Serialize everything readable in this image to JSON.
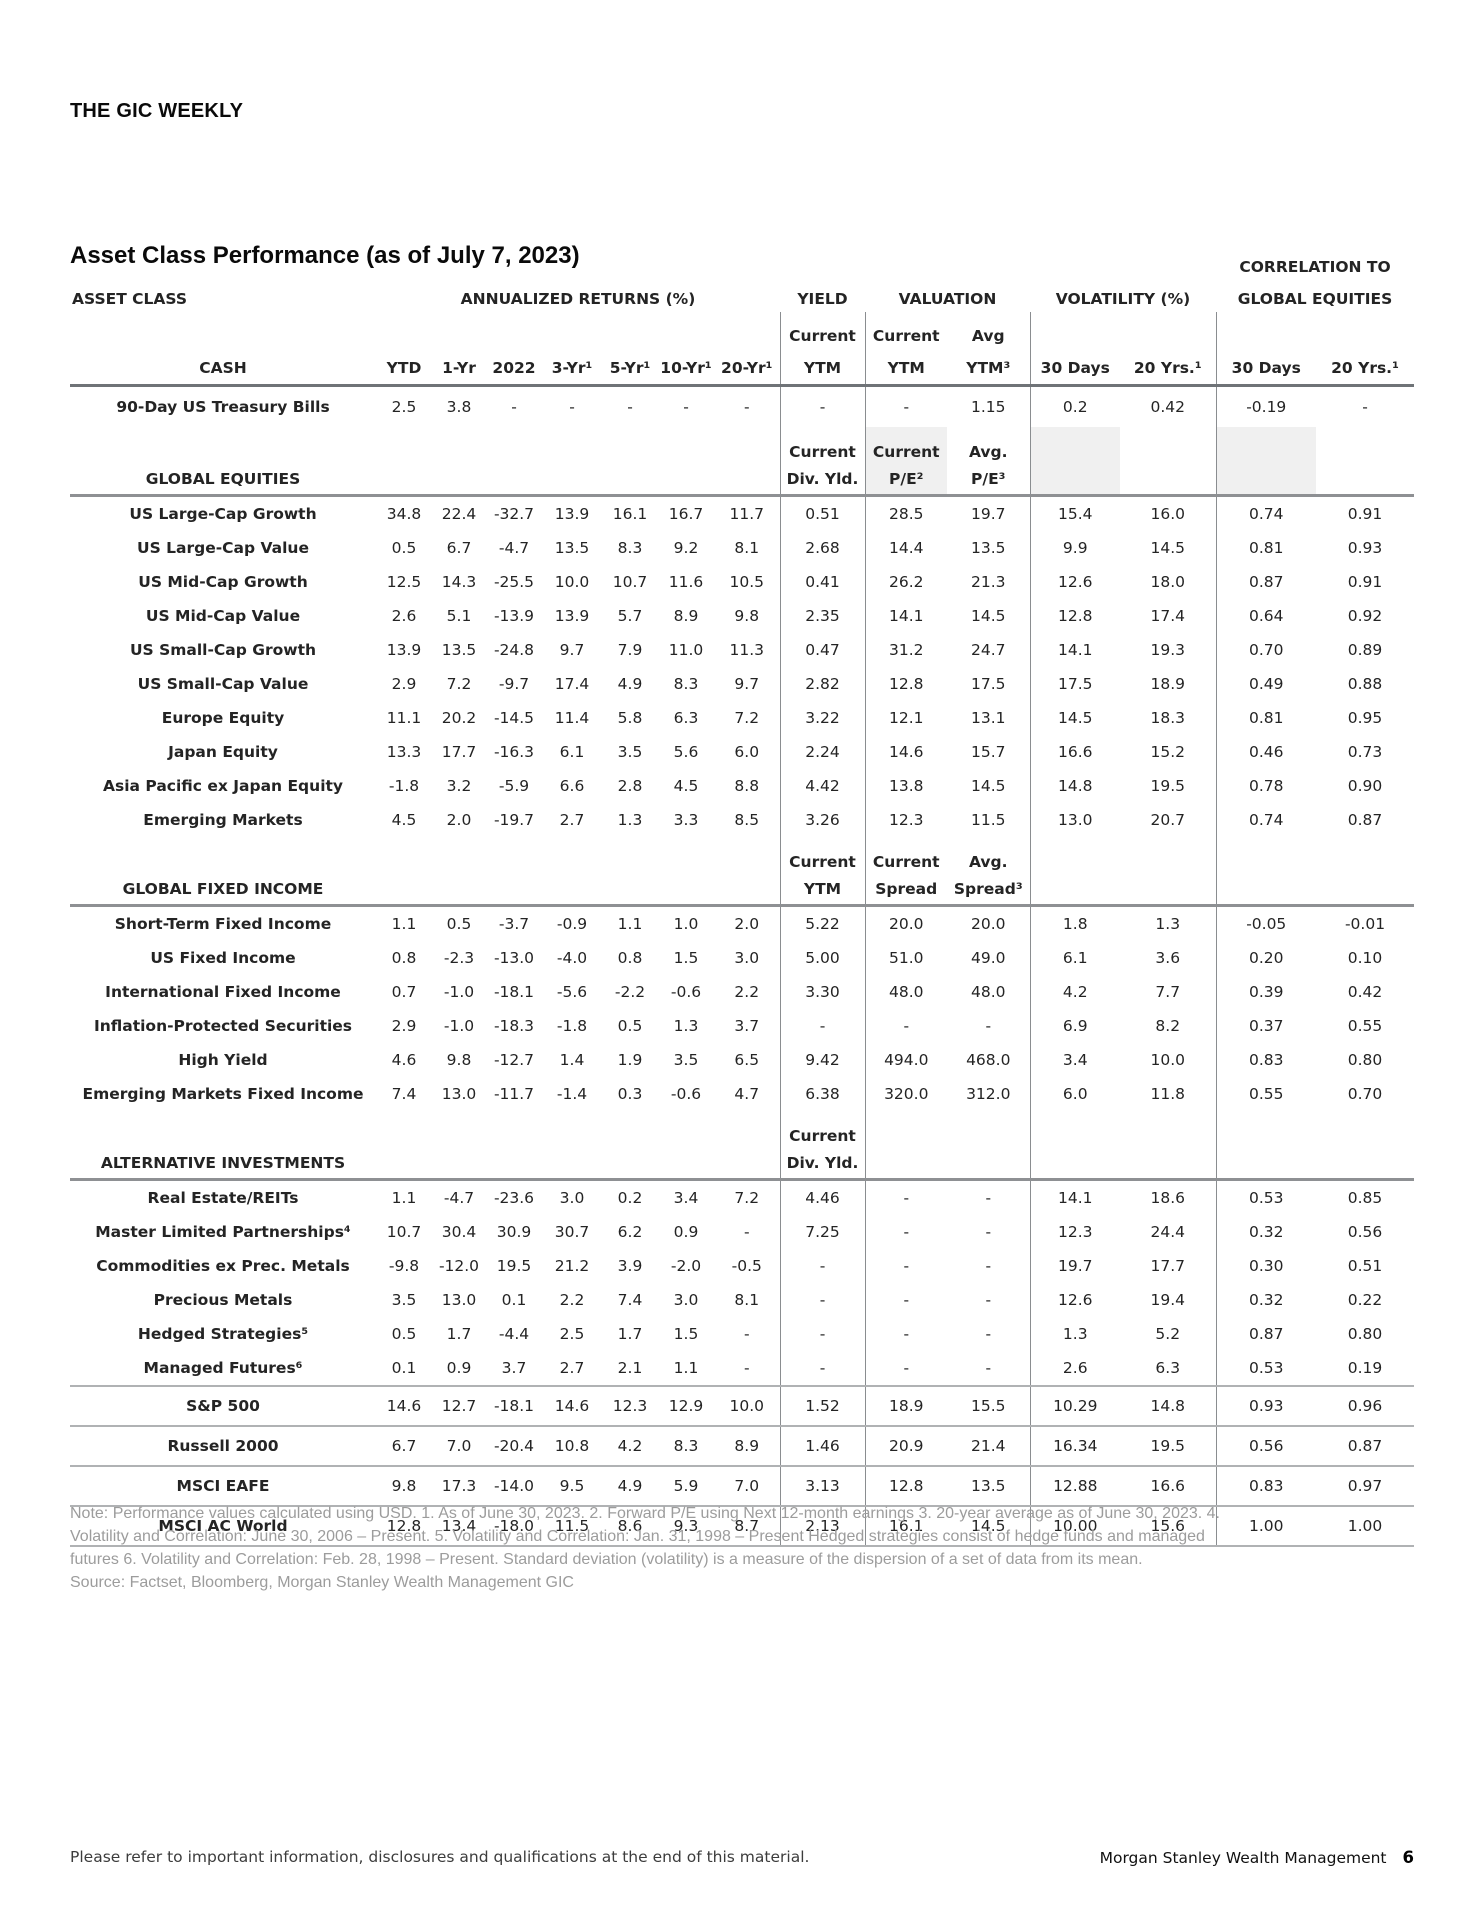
{
  "page": {
    "brand": "THE GIC WEEKLY",
    "title": "Asset Class Performance (as of July 7, 2023)",
    "footer_left": "Please refer to important information, disclosures and qualifications at the end of this material.",
    "footer_right": "Morgan Stanley Wealth Management",
    "page_number": "6"
  },
  "colors": {
    "accent": "#1BA7E0",
    "shade": "#F0F0F0",
    "rule_dark": "#6F7377",
    "rule_section": "#8E9093",
    "rule_thin": "#B0B2B4"
  },
  "table": {
    "header": {
      "correlation_line1": "CORRELATION TO",
      "asset_class": "ASSET CLASS",
      "annualized_returns": "ANNUALIZED RETURNS (%)",
      "yield": "YIELD",
      "valuation": "VALUATION",
      "volatility": "VOLATILITY (%)",
      "correlation_line2": "GLOBAL EQUITIES",
      "cash_label": "CASH",
      "return_cols": [
        "YTD",
        "1-Yr",
        "2022",
        "3-Yr¹",
        "5-Yr¹",
        "10-Yr¹",
        "20-Yr¹"
      ],
      "yield_sub": [
        "Current",
        "YTM"
      ],
      "val1_sub": [
        "Current",
        "YTM"
      ],
      "val2_sub": [
        "Avg",
        "YTM³"
      ],
      "vol_cols": [
        "30 Days",
        "20 Yrs.¹"
      ],
      "corr_cols": [
        "30 Days",
        "20 Yrs.¹"
      ]
    },
    "sections": [
      {
        "name": "CASH",
        "sub": null,
        "rows": [
          {
            "label": "90-Day US Treasury Bills",
            "values": [
              "2.5",
              "3.8",
              "-",
              "-",
              "-",
              "-",
              "-",
              "-",
              "-",
              "1.15",
              "0.2",
              "0.42",
              "-0.19",
              "-"
            ]
          }
        ]
      },
      {
        "name": "GLOBAL EQUITIES",
        "sub": {
          "yield": [
            "Current",
            "Div. Yld."
          ],
          "val1": [
            "Current",
            "P/E²"
          ],
          "val2": [
            "Avg.",
            "P/E³"
          ],
          "shaded": true
        },
        "rows": [
          {
            "label": "US Large-Cap Growth",
            "values": [
              "34.8",
              "22.4",
              "-32.7",
              "13.9",
              "16.1",
              "16.7",
              "11.7",
              "0.51",
              "28.5",
              "19.7",
              "15.4",
              "16.0",
              "0.74",
              "0.91"
            ]
          },
          {
            "label": "US Large-Cap Value",
            "values": [
              "0.5",
              "6.7",
              "-4.7",
              "13.5",
              "8.3",
              "9.2",
              "8.1",
              "2.68",
              "14.4",
              "13.5",
              "9.9",
              "14.5",
              "0.81",
              "0.93"
            ]
          },
          {
            "label": "US Mid-Cap Growth",
            "values": [
              "12.5",
              "14.3",
              "-25.5",
              "10.0",
              "10.7",
              "11.6",
              "10.5",
              "0.41",
              "26.2",
              "21.3",
              "12.6",
              "18.0",
              "0.87",
              "0.91"
            ]
          },
          {
            "label": "US Mid-Cap Value",
            "values": [
              "2.6",
              "5.1",
              "-13.9",
              "13.9",
              "5.7",
              "8.9",
              "9.8",
              "2.35",
              "14.1",
              "14.5",
              "12.8",
              "17.4",
              "0.64",
              "0.92"
            ]
          },
          {
            "label": "US Small-Cap Growth",
            "values": [
              "13.9",
              "13.5",
              "-24.8",
              "9.7",
              "7.9",
              "11.0",
              "11.3",
              "0.47",
              "31.2",
              "24.7",
              "14.1",
              "19.3",
              "0.70",
              "0.89"
            ]
          },
          {
            "label": "US Small-Cap Value",
            "values": [
              "2.9",
              "7.2",
              "-9.7",
              "17.4",
              "4.9",
              "8.3",
              "9.7",
              "2.82",
              "12.8",
              "17.5",
              "17.5",
              "18.9",
              "0.49",
              "0.88"
            ]
          },
          {
            "label": "Europe Equity",
            "values": [
              "11.1",
              "20.2",
              "-14.5",
              "11.4",
              "5.8",
              "6.3",
              "7.2",
              "3.22",
              "12.1",
              "13.1",
              "14.5",
              "18.3",
              "0.81",
              "0.95"
            ]
          },
          {
            "label": "Japan Equity",
            "values": [
              "13.3",
              "17.7",
              "-16.3",
              "6.1",
              "3.5",
              "5.6",
              "6.0",
              "2.24",
              "14.6",
              "15.7",
              "16.6",
              "15.2",
              "0.46",
              "0.73"
            ]
          },
          {
            "label": "Asia Pacific ex Japan Equity",
            "values": [
              "-1.8",
              "3.2",
              "-5.9",
              "6.6",
              "2.8",
              "4.5",
              "8.8",
              "4.42",
              "13.8",
              "14.5",
              "14.8",
              "19.5",
              "0.78",
              "0.90"
            ]
          },
          {
            "label": "Emerging Markets",
            "values": [
              "4.5",
              "2.0",
              "-19.7",
              "2.7",
              "1.3",
              "3.3",
              "8.5",
              "3.26",
              "12.3",
              "11.5",
              "13.0",
              "20.7",
              "0.74",
              "0.87"
            ]
          }
        ]
      },
      {
        "name": "GLOBAL FIXED INCOME",
        "sub": {
          "yield": [
            "Current",
            "YTM"
          ],
          "val1": [
            "Current",
            "Spread"
          ],
          "val2": [
            "Avg.",
            "Spread³"
          ],
          "shaded": false
        },
        "rows": [
          {
            "label": "Short-Term Fixed Income",
            "values": [
              "1.1",
              "0.5",
              "-3.7",
              "-0.9",
              "1.1",
              "1.0",
              "2.0",
              "5.22",
              "20.0",
              "20.0",
              "1.8",
              "1.3",
              "-0.05",
              "-0.01"
            ]
          },
          {
            "label": "US Fixed Income",
            "values": [
              "0.8",
              "-2.3",
              "-13.0",
              "-4.0",
              "0.8",
              "1.5",
              "3.0",
              "5.00",
              "51.0",
              "49.0",
              "6.1",
              "3.6",
              "0.20",
              "0.10"
            ]
          },
          {
            "label": "International Fixed Income",
            "values": [
              "0.7",
              "-1.0",
              "-18.1",
              "-5.6",
              "-2.2",
              "-0.6",
              "2.2",
              "3.30",
              "48.0",
              "48.0",
              "4.2",
              "7.7",
              "0.39",
              "0.42"
            ]
          },
          {
            "label": "Inflation-Protected  Securities",
            "values": [
              "2.9",
              "-1.0",
              "-18.3",
              "-1.8",
              "0.5",
              "1.3",
              "3.7",
              "-",
              "-",
              "-",
              "6.9",
              "8.2",
              "0.37",
              "0.55"
            ]
          },
          {
            "label": "High Yield",
            "values": [
              "4.6",
              "9.8",
              "-12.7",
              "1.4",
              "1.9",
              "3.5",
              "6.5",
              "9.42",
              "494.0",
              "468.0",
              "3.4",
              "10.0",
              "0.83",
              "0.80"
            ]
          },
          {
            "label": "Emerging Markets Fixed Income",
            "values": [
              "7.4",
              "13.0",
              "-11.7",
              "-1.4",
              "0.3",
              "-0.6",
              "4.7",
              "6.38",
              "320.0",
              "312.0",
              "6.0",
              "11.8",
              "0.55",
              "0.70"
            ]
          }
        ]
      },
      {
        "name": "ALTERNATIVE INVESTMENTS",
        "sub": {
          "yield": [
            "Current",
            "Div. Yld."
          ],
          "val1": [
            "",
            ""
          ],
          "val2": [
            "",
            ""
          ],
          "shaded": false
        },
        "rows": [
          {
            "label": "Real Estate/REITs",
            "values": [
              "1.1",
              "-4.7",
              "-23.6",
              "3.0",
              "0.2",
              "3.4",
              "7.2",
              "4.46",
              "-",
              "-",
              "14.1",
              "18.6",
              "0.53",
              "0.85"
            ]
          },
          {
            "label": "Master Limited Partnerships⁴",
            "values": [
              "10.7",
              "30.4",
              "30.9",
              "30.7",
              "6.2",
              "0.9",
              "-",
              "7.25",
              "-",
              "-",
              "12.3",
              "24.4",
              "0.32",
              "0.56"
            ]
          },
          {
            "label": "Commodities ex Prec. Metals",
            "values": [
              "-9.8",
              "-12.0",
              "19.5",
              "21.2",
              "3.9",
              "-2.0",
              "-0.5",
              "-",
              "-",
              "-",
              "19.7",
              "17.7",
              "0.30",
              "0.51"
            ]
          },
          {
            "label": "Precious Metals",
            "values": [
              "3.5",
              "13.0",
              "0.1",
              "2.2",
              "7.4",
              "3.0",
              "8.1",
              "-",
              "-",
              "-",
              "12.6",
              "19.4",
              "0.32",
              "0.22"
            ]
          },
          {
            "label": "Hedged Strategies⁵",
            "values": [
              "0.5",
              "1.7",
              "-4.4",
              "2.5",
              "1.7",
              "1.5",
              "-",
              "-",
              "-",
              "-",
              "1.3",
              "5.2",
              "0.87",
              "0.80"
            ]
          },
          {
            "label": "Managed Futures⁶",
            "values": [
              "0.1",
              "0.9",
              "3.7",
              "2.7",
              "2.1",
              "1.1",
              "-",
              "-",
              "-",
              "-",
              "2.6",
              "6.3",
              "0.53",
              "0.19"
            ]
          }
        ]
      }
    ],
    "index_rows": [
      {
        "label": "S&P 500",
        "values": [
          "14.6",
          "12.7",
          "-18.1",
          "14.6",
          "12.3",
          "12.9",
          "10.0",
          "1.52",
          "18.9",
          "15.5",
          "10.29",
          "14.8",
          "0.93",
          "0.96"
        ]
      },
      {
        "label": "Russell 2000",
        "values": [
          "6.7",
          "7.0",
          "-20.4",
          "10.8",
          "4.2",
          "8.3",
          "8.9",
          "1.46",
          "20.9",
          "21.4",
          "16.34",
          "19.5",
          "0.56",
          "0.87"
        ]
      },
      {
        "label": "MSCI EAFE",
        "values": [
          "9.8",
          "17.3",
          "-14.0",
          "9.5",
          "4.9",
          "5.9",
          "7.0",
          "3.13",
          "12.8",
          "13.5",
          "12.88",
          "16.6",
          "0.83",
          "0.97"
        ]
      },
      {
        "label": "MSCI AC World",
        "values": [
          "12.8",
          "13.4",
          "-18.0",
          "11.5",
          "8.6",
          "9.3",
          "8.7",
          "2.13",
          "16.1",
          "14.5",
          "10.00",
          "15.6",
          "1.00",
          "1.00"
        ]
      }
    ]
  },
  "notes": {
    "lines": [
      "Note: Performance values calculated using USD. 1. As of June 30, 2023. 2. Forward P/E using Next 12-month earnings 3. 20-year average as of June 30, 2023. 4.",
      "Volatility and Correlation: June 30, 2006 – Present. 5. Volatility and Correlation: Jan. 31, 1998 – Present Hedged strategies consist of hedge funds and managed",
      "futures 6. Volatility and Correlation: Feb. 28, 1998 – Present. Standard deviation (volatility) is a measure of the dispersion of a set of data from its mean."
    ],
    "source": "Source: Factset, Bloomberg, Morgan Stanley Wealth Management GIC"
  }
}
